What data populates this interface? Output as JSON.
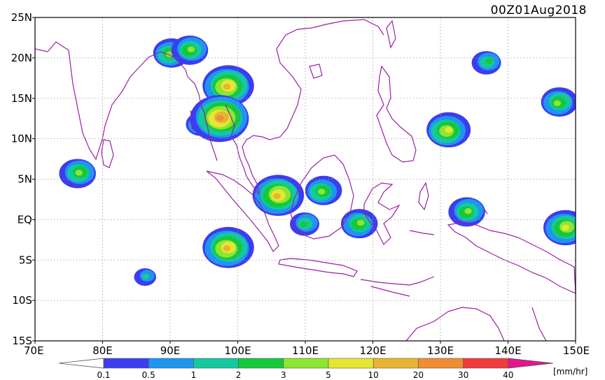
{
  "map": {
    "timestamp": "00Z01Aug2018",
    "lat_labels": [
      "25N",
      "20N",
      "15N",
      "10N",
      "5N",
      "EQ",
      "5S",
      "10S",
      "15S"
    ],
    "lon_labels": [
      "70E",
      "80E",
      "90E",
      "100E",
      "110E",
      "120E",
      "130E",
      "140E",
      "150E"
    ],
    "lat_range": [
      -15,
      25
    ],
    "lon_range": [
      70,
      150
    ],
    "gridlines": "dotted"
  },
  "colorbar": {
    "unit_label": "[mm/hr]",
    "thresholds": [
      "0.1",
      "0.5",
      "1",
      "2",
      "3",
      "5",
      "10",
      "20",
      "30",
      "40"
    ],
    "colors": [
      "#3c3cf0",
      "#1e96f0",
      "#14c8a0",
      "#14c83c",
      "#8ce632",
      "#e6e632",
      "#e6b432",
      "#f08c32",
      "#f03c3c",
      "#e6148c"
    ]
  },
  "precip_cells": [
    {
      "lon": 76.5,
      "lat": 5.8,
      "level": 4
    },
    {
      "lon": 94.5,
      "lat": 11.8,
      "level": 3
    },
    {
      "lon": 90.0,
      "lat": 20.5,
      "level": 4
    },
    {
      "lon": 93.0,
      "lat": 21.0,
      "level": 4
    },
    {
      "lon": 98.5,
      "lat": 16.5,
      "level": 6
    },
    {
      "lon": 97.5,
      "lat": 12.6,
      "level": 7
    },
    {
      "lon": 106.0,
      "lat": 3.0,
      "level": 6
    },
    {
      "lon": 112.5,
      "lat": 3.5,
      "level": 4
    },
    {
      "lon": 110.0,
      "lat": -0.5,
      "level": 3
    },
    {
      "lon": 98.5,
      "lat": -3.5,
      "level": 6
    },
    {
      "lon": 86.5,
      "lat": -7.0,
      "level": 2
    },
    {
      "lon": 118.0,
      "lat": -0.5,
      "level": 4
    },
    {
      "lon": 131.0,
      "lat": 11.0,
      "level": 5
    },
    {
      "lon": 134.0,
      "lat": 1.0,
      "level": 4
    },
    {
      "lon": 147.5,
      "lat": 14.5,
      "level": 4
    },
    {
      "lon": 137.0,
      "lat": 19.5,
      "level": 3
    },
    {
      "lon": 148.5,
      "lat": -1.0,
      "level": 5
    }
  ]
}
